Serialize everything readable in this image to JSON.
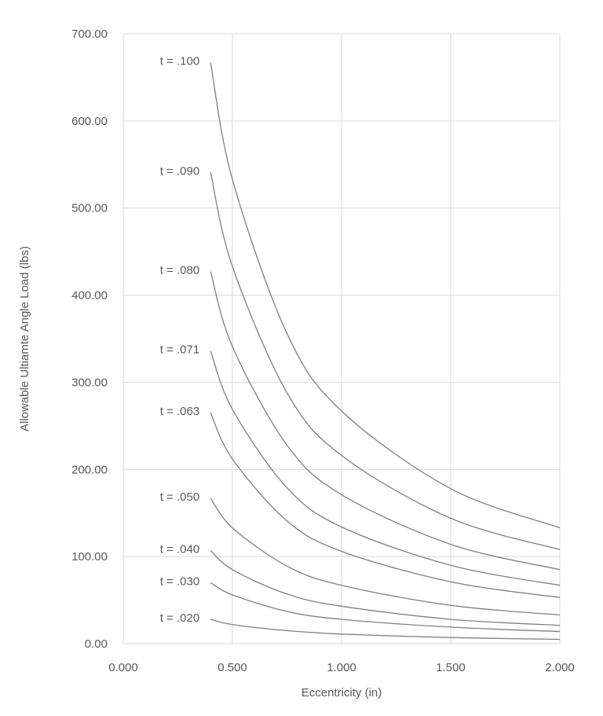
{
  "chart_data": {
    "type": "line",
    "title": "",
    "xlabel": "Eccentricity (in)",
    "ylabel": "Allowable Ultiamte Angle Load (lbs)",
    "xlim": [
      0,
      2
    ],
    "ylim": [
      0,
      700
    ],
    "xticks": [
      0,
      0.5,
      1,
      1.5,
      2
    ],
    "yticks": [
      0,
      100,
      200,
      300,
      400,
      500,
      600,
      700
    ],
    "xtick_labels": [
      "0.000",
      "0.500",
      "1.000",
      "1.500",
      "2.000"
    ],
    "ytick_labels": [
      "0.00",
      "100.00",
      "200.00",
      "300.00",
      "400.00",
      "500.00",
      "600.00",
      "700.00"
    ],
    "grid": true,
    "legend": "none",
    "line_color": "#7f7f7f",
    "grid_color": "#d9d9d9",
    "text_color": "#595959",
    "series": [
      {
        "name": "t = .100",
        "x": [
          0.4,
          0.5,
          0.75,
          1.0,
          1.5,
          2.0
        ],
        "y": [
          667,
          533,
          356,
          267,
          178,
          133
        ]
      },
      {
        "name": "t = .090",
        "x": [
          0.4,
          0.5,
          0.75,
          1.0,
          1.5,
          2.0
        ],
        "y": [
          541,
          433,
          288,
          216,
          144,
          108
        ]
      },
      {
        "name": "t = .080",
        "x": [
          0.4,
          0.5,
          0.75,
          1.0,
          1.5,
          2.0
        ],
        "y": [
          427,
          341,
          228,
          171,
          114,
          85
        ]
      },
      {
        "name": "t = .071",
        "x": [
          0.4,
          0.5,
          0.75,
          1.0,
          1.5,
          2.0
        ],
        "y": [
          336,
          269,
          179,
          134,
          90,
          67
        ]
      },
      {
        "name": "t = .063",
        "x": [
          0.4,
          0.5,
          0.75,
          1.0,
          1.5,
          2.0
        ],
        "y": [
          265,
          212,
          141,
          106,
          71,
          53
        ]
      },
      {
        "name": "t = .050",
        "x": [
          0.4,
          0.5,
          0.75,
          1.0,
          1.5,
          2.0
        ],
        "y": [
          167,
          133,
          89,
          67,
          44,
          33
        ]
      },
      {
        "name": "t = .040",
        "x": [
          0.4,
          0.5,
          0.75,
          1.0,
          1.5,
          2.0
        ],
        "y": [
          107,
          85,
          57,
          43,
          28,
          21
        ]
      },
      {
        "name": "t = .030",
        "x": [
          0.4,
          0.5,
          0.75,
          1.0,
          1.5,
          2.0
        ],
        "y": [
          70,
          56,
          37,
          28,
          19,
          14
        ]
      },
      {
        "name": "t = .020",
        "x": [
          0.4,
          0.5,
          0.75,
          1.0,
          1.5,
          2.0
        ],
        "y": [
          28,
          22,
          15,
          11,
          7,
          5
        ]
      }
    ]
  }
}
